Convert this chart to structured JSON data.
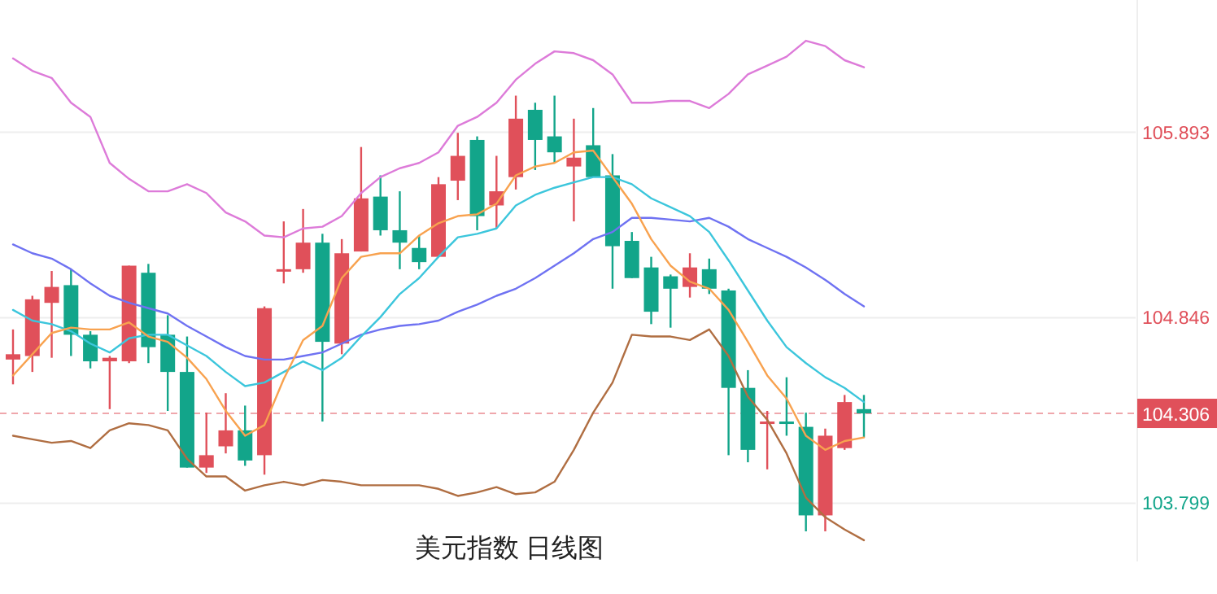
{
  "chart_data": {
    "type": "candlestick",
    "title": "美元指数 日线图",
    "categories": [
      null,
      null,
      null,
      null,
      null,
      null,
      null,
      null,
      null,
      null,
      null,
      null,
      null,
      null,
      null,
      null,
      null,
      null,
      null,
      null,
      null,
      null,
      null,
      null,
      null,
      null,
      null,
      null,
      null,
      null,
      null,
      null,
      null,
      null,
      null,
      null,
      null,
      null,
      null,
      null,
      null,
      null,
      null,
      null,
      null
    ],
    "ohlc": [
      [
        104.61,
        104.78,
        104.47,
        104.64
      ],
      [
        104.63,
        104.97,
        104.54,
        104.95
      ],
      [
        104.93,
        105.11,
        104.62,
        105.02
      ],
      [
        105.03,
        105.12,
        104.63,
        104.75
      ],
      [
        104.75,
        104.77,
        104.56,
        104.6
      ],
      [
        104.6,
        104.63,
        104.33,
        104.62
      ],
      [
        104.6,
        105.14,
        104.59,
        105.14
      ],
      [
        105.1,
        105.15,
        104.59,
        104.68
      ],
      [
        104.75,
        104.86,
        104.32,
        104.54
      ],
      [
        104.54,
        104.74,
        104.0,
        104.0
      ],
      [
        104.0,
        104.31,
        103.97,
        104.07
      ],
      [
        104.12,
        104.42,
        104.08,
        104.21
      ],
      [
        104.21,
        104.35,
        104.01,
        104.04
      ],
      [
        104.07,
        104.91,
        103.96,
        104.9
      ],
      [
        105.11,
        105.39,
        105.04,
        105.12
      ],
      [
        105.12,
        105.46,
        105.1,
        105.27
      ],
      [
        105.27,
        105.32,
        104.26,
        104.71
      ],
      [
        104.7,
        105.29,
        104.64,
        105.21
      ],
      [
        105.22,
        105.81,
        105.22,
        105.52
      ],
      [
        105.53,
        105.65,
        105.31,
        105.34
      ],
      [
        105.34,
        105.56,
        105.12,
        105.27
      ],
      [
        105.24,
        105.31,
        105.12,
        105.16
      ],
      [
        105.19,
        105.64,
        105.19,
        105.6
      ],
      [
        105.62,
        105.89,
        105.51,
        105.76
      ],
      [
        105.85,
        105.87,
        105.34,
        105.42
      ],
      [
        105.48,
        105.76,
        105.35,
        105.56
      ],
      [
        105.64,
        106.1,
        105.57,
        105.97
      ],
      [
        106.02,
        106.06,
        105.68,
        105.85
      ],
      [
        105.87,
        106.1,
        105.72,
        105.78
      ],
      [
        105.7,
        105.97,
        105.39,
        105.75
      ],
      [
        105.82,
        106.03,
        105.64,
        105.64
      ],
      [
        105.65,
        105.77,
        105.01,
        105.25
      ],
      [
        105.28,
        105.33,
        105.07,
        105.07
      ],
      [
        105.13,
        105.19,
        104.81,
        104.88
      ],
      [
        105.08,
        105.09,
        104.79,
        105.01
      ],
      [
        105.02,
        105.21,
        104.96,
        105.13
      ],
      [
        105.12,
        105.18,
        104.98,
        105.01
      ],
      [
        105.0,
        105.01,
        104.07,
        104.45
      ],
      [
        104.45,
        104.55,
        104.03,
        104.1
      ],
      [
        104.25,
        104.32,
        103.99,
        104.26
      ],
      [
        104.26,
        104.51,
        104.18,
        104.25
      ],
      [
        104.23,
        104.31,
        103.64,
        103.73
      ],
      [
        103.73,
        104.22,
        103.64,
        104.18
      ],
      [
        104.11,
        104.41,
        104.1,
        104.37
      ],
      [
        104.33,
        104.41,
        104.17,
        104.306
      ]
    ],
    "colors": [
      "#e0505a",
      "#e0505a",
      "#e0505a",
      "#12a58a",
      "#12a58a",
      "#e0505a",
      "#e0505a",
      "#12a58a",
      "#12a58a",
      "#12a58a",
      "#e0505a",
      "#e0505a",
      "#12a58a",
      "#e0505a",
      "#e0505a",
      "#e0505a",
      "#12a58a",
      "#e0505a",
      "#e0505a",
      "#12a58a",
      "#12a58a",
      "#12a58a",
      "#e0505a",
      "#e0505a",
      "#12a58a",
      "#e0505a",
      "#e0505a",
      "#12a58a",
      "#12a58a",
      "#e0505a",
      "#12a58a",
      "#12a58a",
      "#12a58a",
      "#12a58a",
      "#12a58a",
      "#e0505a",
      "#12a58a",
      "#12a58a",
      "#12a58a",
      "#e0505a",
      "#12a58a",
      "#12a58a",
      "#e0505a",
      "#e0505a",
      "#12a58a"
    ],
    "series": [
      {
        "type": "line",
        "color": "#dd7bd9",
        "values": [
          106.31,
          106.24,
          106.2,
          106.06,
          105.98,
          105.72,
          105.63,
          105.56,
          105.56,
          105.6,
          105.55,
          105.44,
          105.39,
          105.31,
          105.3,
          105.35,
          105.36,
          105.42,
          105.55,
          105.64,
          105.69,
          105.72,
          105.78,
          105.93,
          105.98,
          106.06,
          106.19,
          106.28,
          106.35,
          106.34,
          106.3,
          106.22,
          106.06,
          106.06,
          106.07,
          106.07,
          106.03,
          106.11,
          106.22,
          106.27,
          106.32,
          106.41,
          106.38,
          106.3,
          106.26
        ]
      },
      {
        "type": "line",
        "color": "#6f72f2",
        "values": [
          105.26,
          105.21,
          105.18,
          105.12,
          105.04,
          104.97,
          104.93,
          104.9,
          104.87,
          104.8,
          104.74,
          104.68,
          104.63,
          104.61,
          104.61,
          104.63,
          104.65,
          104.7,
          104.75,
          104.78,
          104.8,
          104.81,
          104.83,
          104.88,
          104.92,
          104.97,
          105.01,
          105.07,
          105.14,
          105.21,
          105.29,
          105.33,
          105.41,
          105.41,
          105.4,
          105.39,
          105.41,
          105.36,
          105.29,
          105.24,
          105.19,
          105.13,
          105.06,
          104.98,
          104.91
        ]
      },
      {
        "type": "line",
        "color": "#3cc6dc",
        "values": [
          104.89,
          104.83,
          104.81,
          104.77,
          104.7,
          104.65,
          104.73,
          104.75,
          104.75,
          104.69,
          104.63,
          104.54,
          104.46,
          104.48,
          104.54,
          104.6,
          104.55,
          104.62,
          104.74,
          104.85,
          104.98,
          105.07,
          105.19,
          105.3,
          105.32,
          105.35,
          105.48,
          105.54,
          105.58,
          105.61,
          105.64,
          105.64,
          105.6,
          105.52,
          105.47,
          105.42,
          105.33,
          105.17,
          105.0,
          104.83,
          104.68,
          104.59,
          104.51,
          104.45,
          104.37
        ]
      },
      {
        "type": "line",
        "color": "#f8a24f",
        "values": [
          104.52,
          104.64,
          104.76,
          104.79,
          104.78,
          104.78,
          104.82,
          104.74,
          104.71,
          104.62,
          104.5,
          104.32,
          104.18,
          104.24,
          104.5,
          104.72,
          104.8,
          105.07,
          105.19,
          105.21,
          105.21,
          105.31,
          105.38,
          105.42,
          105.43,
          105.49,
          105.65,
          105.7,
          105.72,
          105.78,
          105.79,
          105.64,
          105.49,
          105.29,
          105.14,
          105.05,
          105.01,
          104.89,
          104.71,
          104.52,
          104.39,
          104.18,
          104.1,
          104.15,
          104.17
        ]
      },
      {
        "type": "line",
        "color": "#b06e42",
        "values": [
          104.18,
          104.16,
          104.14,
          104.15,
          104.11,
          104.21,
          104.25,
          104.24,
          104.21,
          104.05,
          103.95,
          103.95,
          103.87,
          103.9,
          103.92,
          103.9,
          103.93,
          103.92,
          103.9,
          103.9,
          103.9,
          103.9,
          103.88,
          103.84,
          103.86,
          103.89,
          103.85,
          103.86,
          103.92,
          104.1,
          104.31,
          104.48,
          104.75,
          104.74,
          104.74,
          104.72,
          104.78,
          104.63,
          104.4,
          104.27,
          104.08,
          103.83,
          103.72,
          103.65,
          103.59
        ]
      }
    ],
    "ylim": [
      103.47,
      106.64
    ],
    "yticks": [
      105.893,
      104.846,
      103.799
    ],
    "grid": "y",
    "tick_labels": "y",
    "ref_lines": [
      {
        "axis": "y",
        "value": 104.306,
        "label": "104.306",
        "color": "#e0505a",
        "line_style": "dashed"
      }
    ]
  }
}
